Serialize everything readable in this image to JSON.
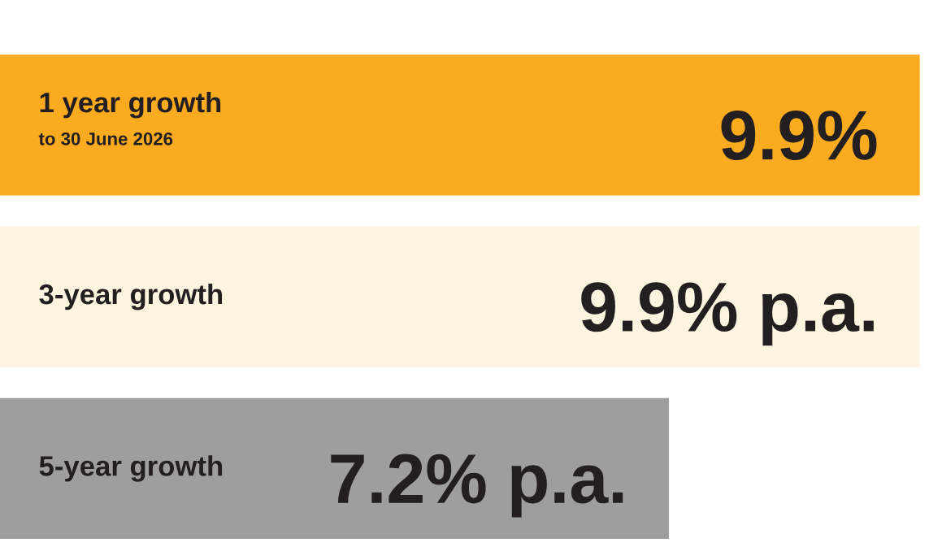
{
  "chart_data": {
    "type": "bar",
    "orientation": "horizontal",
    "categories": [
      "1 year growth\nto 30 June 2026",
      "3-year growth",
      "5-year growth"
    ],
    "values": [
      9.9,
      9.9,
      7.2
    ],
    "colors": [
      "#fbab1f",
      "#fdf5df",
      "#9e9e9e"
    ],
    "value_labels": [
      "9.9%",
      "9.9% p.a.",
      "7.2% p.a."
    ]
  }
}
